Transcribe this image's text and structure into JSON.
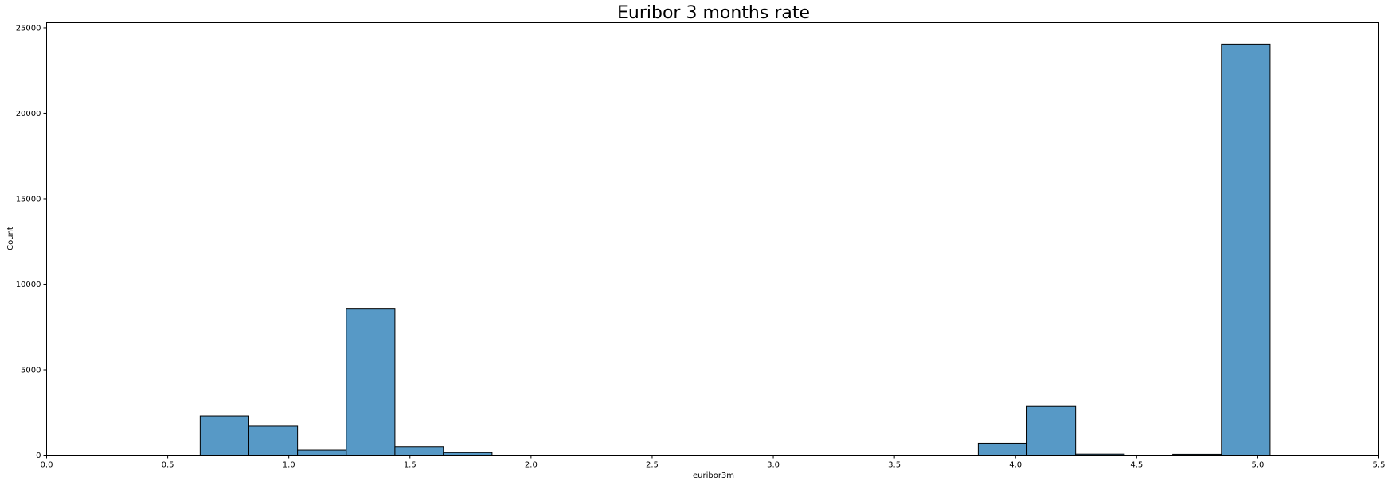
{
  "chart_data": {
    "type": "bar",
    "title": "Euribor 3 months rate",
    "xlabel": "euribor3m",
    "ylabel": "Count",
    "xlim": [
      0,
      5.5
    ],
    "ylim": [
      0,
      25300
    ],
    "xticks": [
      "0.0",
      "0.5",
      "1.0",
      "1.5",
      "2.0",
      "2.5",
      "3.0",
      "3.5",
      "4.0",
      "4.5",
      "5.0",
      "5.5"
    ],
    "yticks": [
      "0",
      "5000",
      "10000",
      "15000",
      "20000",
      "25000"
    ],
    "bar_color": "#5799c6",
    "grid": false,
    "bins": [
      {
        "x0": 0.634,
        "x1": 0.835,
        "count": 2300
      },
      {
        "x0": 0.835,
        "x1": 1.036,
        "count": 1700
      },
      {
        "x0": 1.036,
        "x1": 1.237,
        "count": 300
      },
      {
        "x0": 1.237,
        "x1": 1.438,
        "count": 8550
      },
      {
        "x0": 1.438,
        "x1": 1.638,
        "count": 500
      },
      {
        "x0": 1.638,
        "x1": 1.839,
        "count": 150
      },
      {
        "x0": 3.846,
        "x1": 4.047,
        "count": 700
      },
      {
        "x0": 4.047,
        "x1": 4.248,
        "count": 2850
      },
      {
        "x0": 4.248,
        "x1": 4.449,
        "count": 60
      },
      {
        "x0": 4.649,
        "x1": 4.85,
        "count": 50
      },
      {
        "x0": 4.85,
        "x1": 5.051,
        "count": 24050
      }
    ]
  }
}
